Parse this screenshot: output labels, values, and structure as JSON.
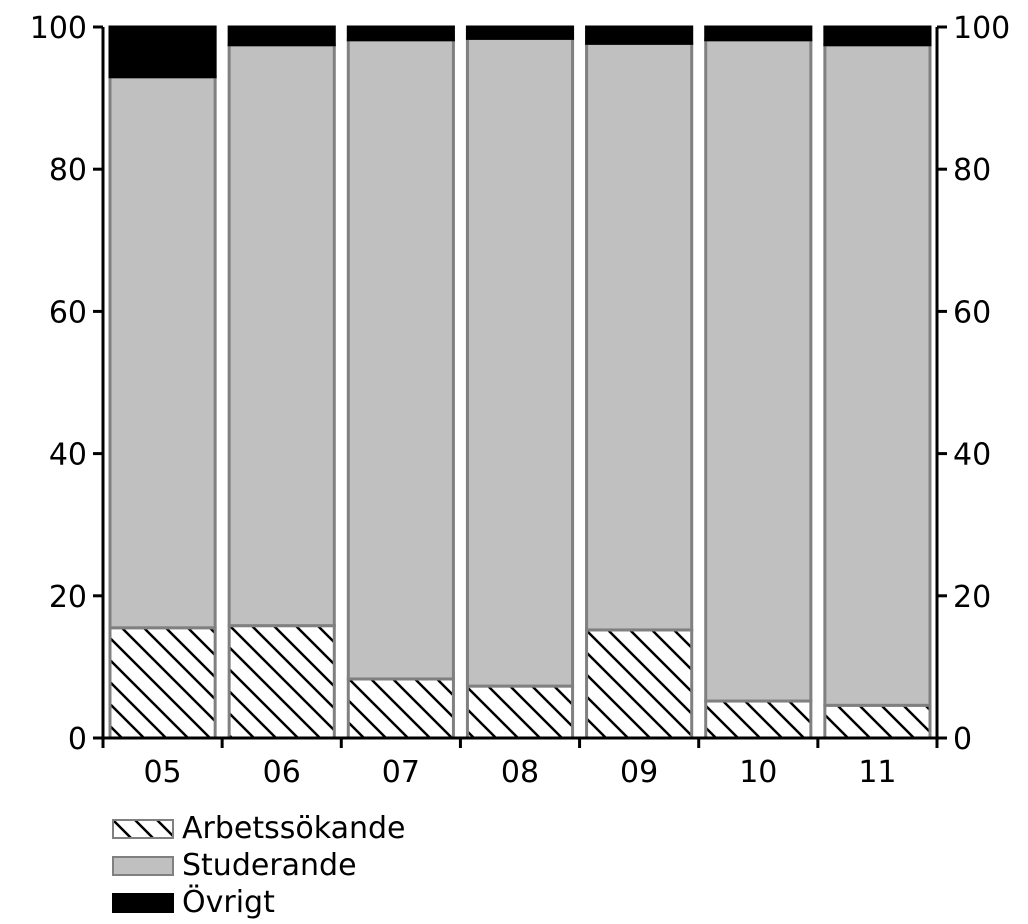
{
  "chart_data": {
    "type": "bar",
    "stacked": true,
    "categories": [
      "05",
      "06",
      "07",
      "08",
      "09",
      "10",
      "11"
    ],
    "series": [
      {
        "name": "Arbetssökande",
        "values": [
          15.5,
          15.8,
          8.3,
          7.3,
          15.2,
          5.2,
          4.6
        ],
        "pattern": "hatched",
        "color": "#ffffff"
      },
      {
        "name": "Studerande",
        "values": [
          77.5,
          81.7,
          89.9,
          91.1,
          82.5,
          93.0,
          92.9
        ],
        "pattern": "solid",
        "color": "#c0c0c0"
      },
      {
        "name": "Övrigt",
        "values": [
          7.0,
          2.5,
          1.8,
          1.6,
          2.3,
          1.8,
          2.5
        ],
        "pattern": "solid",
        "color": "#000000"
      }
    ],
    "ylim": [
      0,
      100
    ],
    "yticks": [
      "0",
      "20",
      "40",
      "60",
      "80",
      "100"
    ],
    "ytick_values": [
      0,
      20,
      40,
      60,
      80,
      100
    ],
    "secondary_y_axis": true,
    "grid": false,
    "legend_position": "bottom-left",
    "title": "",
    "xlabel": "",
    "ylabel": ""
  }
}
